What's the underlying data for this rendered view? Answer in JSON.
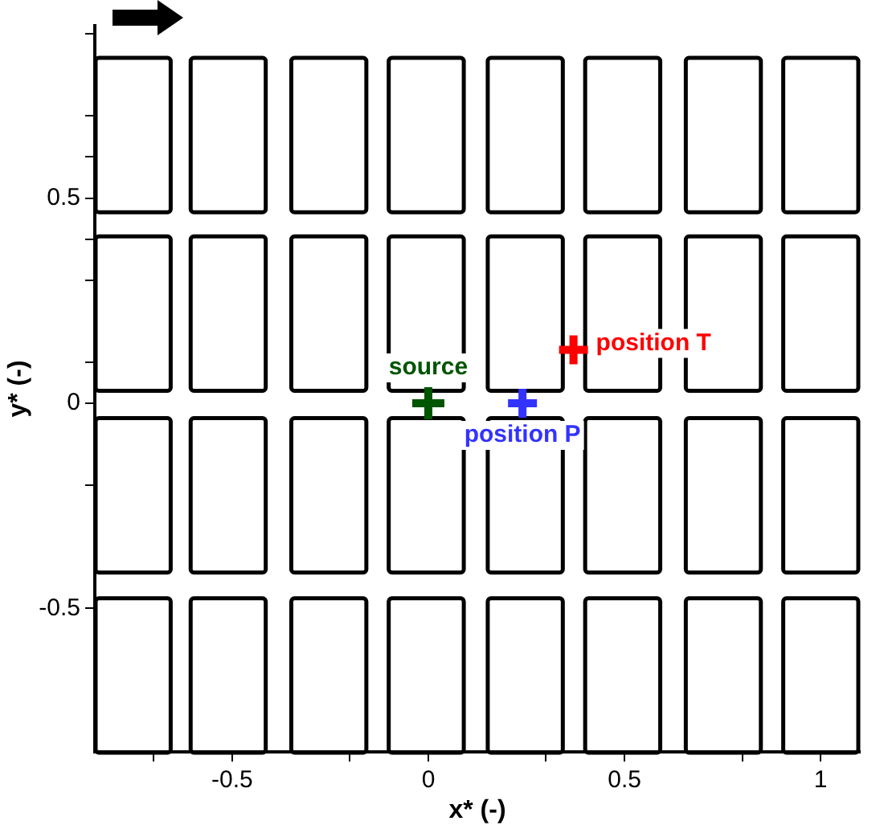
{
  "chart_data": {
    "type": "scatter",
    "xlabel": "x* (-)",
    "ylabel": "y* (-)",
    "xlim": [
      -0.85,
      1.1
    ],
    "ylim": [
      -0.85,
      0.92
    ],
    "xticks": [
      {
        "value": -0.7,
        "label": null
      },
      -0.5,
      {
        "value": -0.2,
        "label": null
      },
      0,
      {
        "value": 0.3,
        "label": null
      },
      0.5,
      {
        "value": 0.8,
        "label": null
      },
      1
    ],
    "yticks": [
      -0.5,
      {
        "value": -0.2,
        "label": null
      },
      0,
      {
        "value": 0.1,
        "label": null
      },
      {
        "value": 0.3,
        "label": null
      },
      {
        "value": 0.4,
        "label": null
      },
      0.5,
      {
        "value": 0.6,
        "label": null
      },
      {
        "value": 0.7,
        "label": null
      },
      {
        "value": 0.9,
        "label": null
      }
    ],
    "grid": false,
    "legend": false,
    "marker": "cross",
    "series": [
      {
        "name": "source",
        "color": "#005500",
        "x": [
          0
        ],
        "values": [
          0
        ]
      },
      {
        "name": "position P",
        "color": "#3333ff",
        "x": [
          0.24
        ],
        "values": [
          0
        ]
      },
      {
        "name": "position T",
        "color": "#ff0000",
        "x": [
          0.37
        ],
        "values": [
          0.13
        ]
      }
    ]
  }
}
